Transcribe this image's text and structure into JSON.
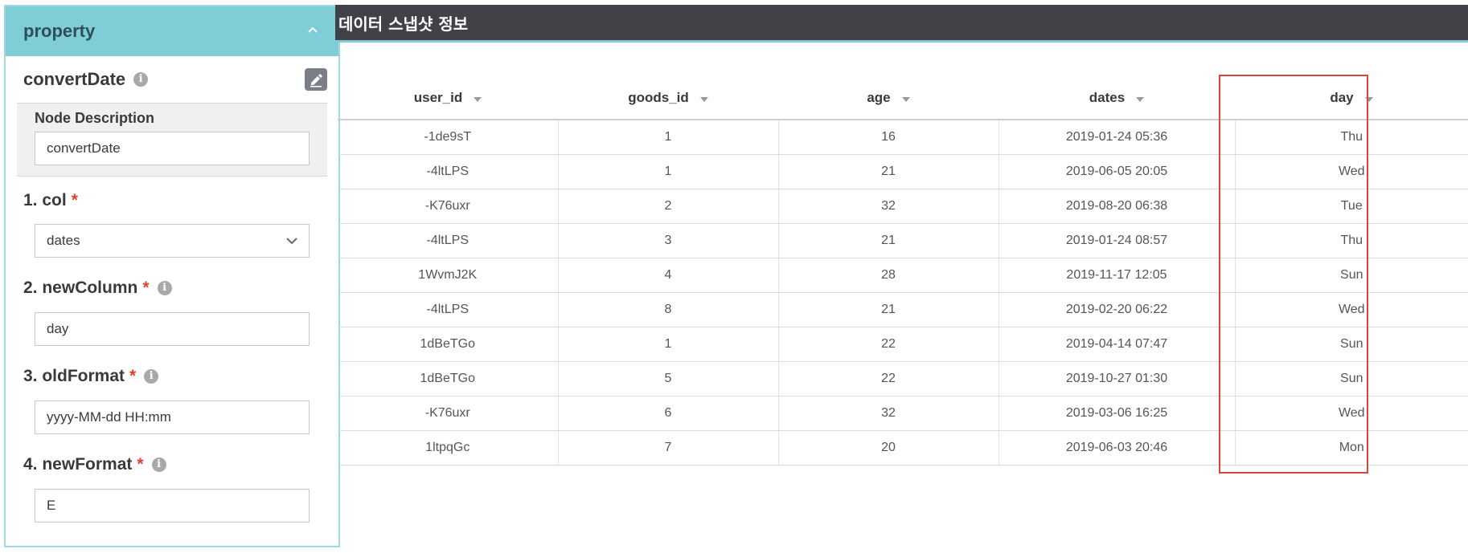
{
  "property_panel": {
    "title": "property",
    "node_name": "convertDate",
    "node_description": {
      "label": "Node Description",
      "value": "convertDate"
    },
    "fields": [
      {
        "label": "1. col",
        "required": "*",
        "value": "dates",
        "type": "select",
        "info": false
      },
      {
        "label": "2. newColumn",
        "required": "*",
        "value": "day",
        "type": "text",
        "info": true
      },
      {
        "label": "3. oldFormat",
        "required": "*",
        "value": "yyyy-MM-dd HH:mm",
        "type": "text",
        "info": true
      },
      {
        "label": "4. newFormat",
        "required": "*",
        "value": "E",
        "type": "text",
        "info": true
      }
    ]
  },
  "data_panel": {
    "title": "데이터 스냅샷 정보",
    "columns": [
      "user_id",
      "goods_id",
      "age",
      "dates",
      "day"
    ],
    "rows": [
      [
        "-1de9sT",
        "1",
        "16",
        "2019-01-24 05:36",
        "Thu"
      ],
      [
        "-4ltLPS",
        "1",
        "21",
        "2019-06-05 20:05",
        "Wed"
      ],
      [
        "-K76uxr",
        "2",
        "32",
        "2019-08-20 06:38",
        "Tue"
      ],
      [
        "-4ltLPS",
        "3",
        "21",
        "2019-01-24 08:57",
        "Thu"
      ],
      [
        "1WvmJ2K",
        "4",
        "28",
        "2019-11-17 12:05",
        "Sun"
      ],
      [
        "-4ltLPS",
        "8",
        "21",
        "2019-02-20 06:22",
        "Wed"
      ],
      [
        "1dBeTGo",
        "1",
        "22",
        "2019-04-14 07:47",
        "Sun"
      ],
      [
        "1dBeTGo",
        "5",
        "22",
        "2019-10-27 01:30",
        "Sun"
      ],
      [
        "-K76uxr",
        "6",
        "32",
        "2019-03-06 16:25",
        "Wed"
      ],
      [
        "1ltpqGc",
        "7",
        "20",
        "2019-06-03 20:46",
        "Mon"
      ]
    ],
    "highlighted_column": "day"
  },
  "colors": {
    "panel_header": "#7fcdd6",
    "data_header": "#404247",
    "highlight_border": "#d9453b",
    "required": "#e0412b"
  }
}
